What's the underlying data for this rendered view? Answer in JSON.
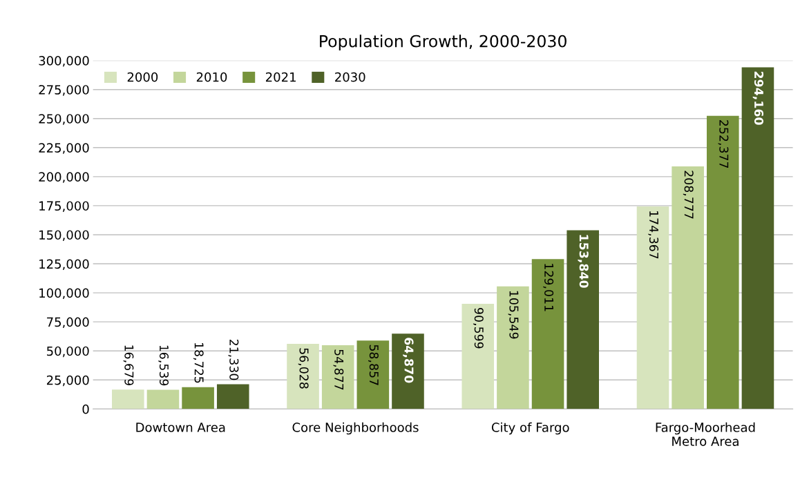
{
  "chart_data": {
    "type": "bar",
    "title": "Population Growth, 2000-2030",
    "categories": [
      "Dowtown Area",
      "Core Neighborhoods",
      "City of Fargo",
      "Fargo-Moorhead\nMetro Area"
    ],
    "series": [
      {
        "name": "2000",
        "color": "#d7e4bd",
        "values": [
          16679,
          56028,
          90599,
          174367
        ],
        "value_labels": [
          "16,679",
          "56,028",
          "90,599",
          "174,367"
        ]
      },
      {
        "name": "2010",
        "color": "#c3d69b",
        "values": [
          16539,
          54877,
          105549,
          208777
        ],
        "value_labels": [
          "16,539",
          "54,877",
          "105,549",
          "208,777"
        ]
      },
      {
        "name": "2021",
        "color": "#77933c",
        "values": [
          18725,
          58857,
          129011,
          252377
        ],
        "value_labels": [
          "18,725",
          "58,857",
          "129,011",
          "252,377"
        ]
      },
      {
        "name": "2030",
        "color": "#4f6228",
        "values": [
          21330,
          64870,
          153840,
          294160
        ],
        "value_labels": [
          "21,330",
          "64,870",
          "153,840",
          "294,160"
        ]
      }
    ],
    "ylim": [
      0,
      300000
    ],
    "yticks": [
      0,
      {
        "value": 25000,
        "label": "25,000"
      },
      {
        "value": 50000,
        "label": "50,000"
      },
      {
        "value": 75000,
        "label": "75,000"
      },
      {
        "value": 100000,
        "label": "100,000"
      },
      {
        "value": 125000,
        "label": "125,000"
      },
      {
        "value": 150000,
        "label": "150,000"
      },
      {
        "value": 175000,
        "label": "175,000"
      },
      {
        "value": 200000,
        "label": "200,000"
      },
      {
        "value": 225000,
        "label": "225,000"
      },
      {
        "value": 250000,
        "label": "250,000"
      },
      {
        "value": 275000,
        "label": "275,000"
      },
      {
        "value": 300000,
        "label": "300,000"
      }
    ],
    "grid": "y",
    "legend": "top left"
  }
}
